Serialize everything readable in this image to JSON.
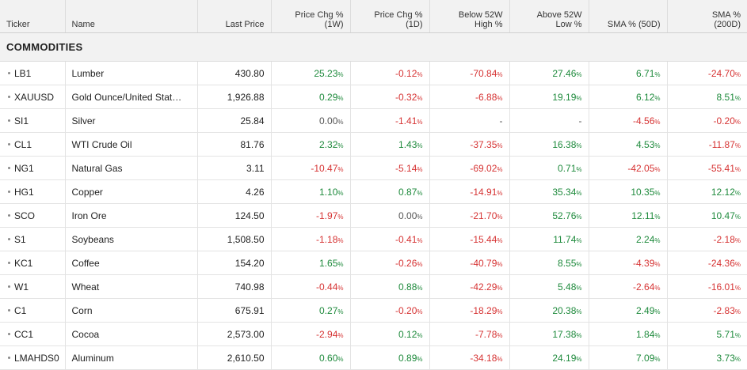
{
  "headers": {
    "ticker": "Ticker",
    "name": "Name",
    "last_price": "Last Price",
    "chg_1w_line1": "Price Chg %",
    "chg_1w_line2": "(1W)",
    "chg_1d_line1": "Price Chg %",
    "chg_1d_line2": "(1D)",
    "below_52w_line1": "Below 52W",
    "below_52w_line2": "High %",
    "above_52w_line1": "Above 52W",
    "above_52w_line2": "Low %",
    "sma50": "SMA % (50D)",
    "sma200_line1": "SMA %",
    "sma200_line2": "(200D)"
  },
  "section_title": "COMMODITIES",
  "pct_suffix": "%",
  "colors": {
    "positive": "#1e8a3c",
    "negative": "#d63333",
    "neutral": "#555555"
  },
  "rows": [
    {
      "ticker": "LB1",
      "name": "Lumber",
      "last": "430.80",
      "w1": "25.23",
      "d1": "-0.12",
      "below": "-70.84",
      "above": "27.46",
      "sma50": "6.71",
      "sma200": "-24.70"
    },
    {
      "ticker": "XAUUSD",
      "name": "Gold Ounce/United Stat…",
      "last": "1,926.88",
      "w1": "0.29",
      "d1": "-0.32",
      "below": "-6.88",
      "above": "19.19",
      "sma50": "6.12",
      "sma200": "8.51"
    },
    {
      "ticker": "SI1",
      "name": "Silver",
      "last": "25.84",
      "w1": "0.00",
      "d1": "-1.41",
      "below": "-",
      "above": "-",
      "sma50": "-4.56",
      "sma200": "-0.20"
    },
    {
      "ticker": "CL1",
      "name": "WTI Crude Oil",
      "last": "81.76",
      "w1": "2.32",
      "d1": "1.43",
      "below": "-37.35",
      "above": "16.38",
      "sma50": "4.53",
      "sma200": "-11.87"
    },
    {
      "ticker": "NG1",
      "name": "Natural Gas",
      "last": "3.11",
      "w1": "-10.47",
      "d1": "-5.14",
      "below": "-69.02",
      "above": "0.71",
      "sma50": "-42.05",
      "sma200": "-55.41"
    },
    {
      "ticker": "HG1",
      "name": "Copper",
      "last": "4.26",
      "w1": "1.10",
      "d1": "0.87",
      "below": "-14.91",
      "above": "35.34",
      "sma50": "10.35",
      "sma200": "12.12"
    },
    {
      "ticker": "SCO",
      "name": "Iron Ore",
      "last": "124.50",
      "w1": "-1.97",
      "d1": "0.00",
      "below": "-21.70",
      "above": "52.76",
      "sma50": "12.11",
      "sma200": "10.47"
    },
    {
      "ticker": "S1",
      "name": "Soybeans",
      "last": "1,508.50",
      "w1": "-1.18",
      "d1": "-0.41",
      "below": "-15.44",
      "above": "11.74",
      "sma50": "2.24",
      "sma200": "-2.18"
    },
    {
      "ticker": "KC1",
      "name": "Coffee",
      "last": "154.20",
      "w1": "1.65",
      "d1": "-0.26",
      "below": "-40.79",
      "above": "8.55",
      "sma50": "-4.39",
      "sma200": "-24.36"
    },
    {
      "ticker": "W1",
      "name": "Wheat",
      "last": "740.98",
      "w1": "-0.44",
      "d1": "0.88",
      "below": "-42.29",
      "above": "5.48",
      "sma50": "-2.64",
      "sma200": "-16.01"
    },
    {
      "ticker": "C1",
      "name": "Corn",
      "last": "675.91",
      "w1": "0.27",
      "d1": "-0.20",
      "below": "-18.29",
      "above": "20.38",
      "sma50": "2.49",
      "sma200": "-2.83"
    },
    {
      "ticker": "CC1",
      "name": "Cocoa",
      "last": "2,573.00",
      "w1": "-2.94",
      "d1": "0.12",
      "below": "-7.78",
      "above": "17.38",
      "sma50": "1.84",
      "sma200": "5.71"
    },
    {
      "ticker": "LMAHDS0",
      "name": "Aluminum",
      "last": "2,610.50",
      "w1": "0.60",
      "d1": "0.89",
      "below": "-34.18",
      "above": "24.19",
      "sma50": "7.09",
      "sma200": "3.73"
    }
  ]
}
